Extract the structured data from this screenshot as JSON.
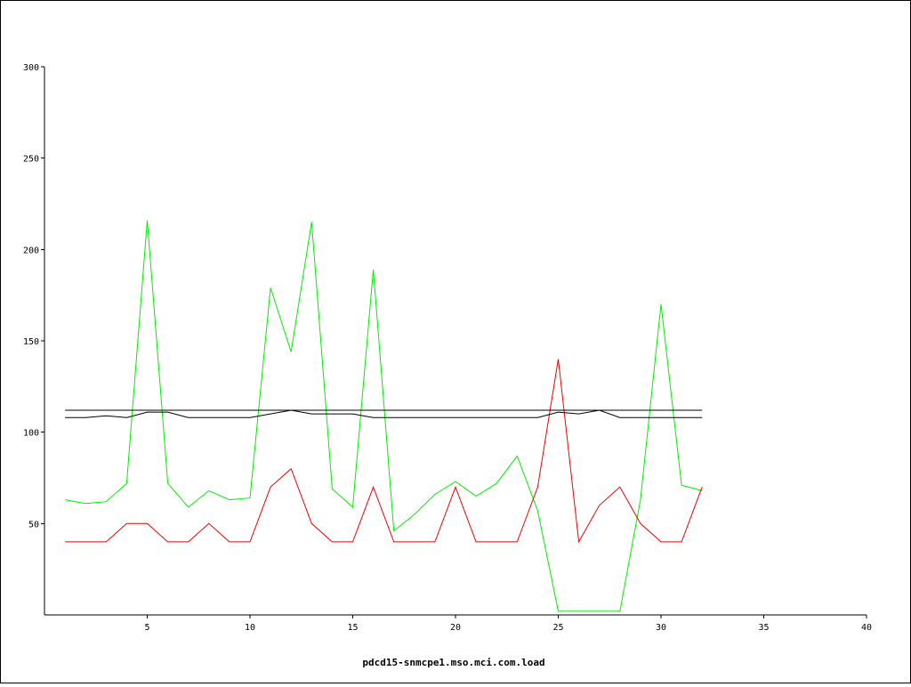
{
  "chart_data": {
    "type": "line",
    "title": "pdcd15-snmcpe1.mso.mci.com.load",
    "xlabel": "pdcd15-snmcpe1.mso.mci.com.load",
    "ylabel": "",
    "xlim": [
      0,
      40
    ],
    "ylim": [
      0,
      300
    ],
    "x_ticks": [
      5,
      10,
      15,
      20,
      25,
      30,
      35,
      40
    ],
    "y_ticks": [
      50,
      100,
      150,
      200,
      250,
      300
    ],
    "grid": false,
    "legend": "none",
    "x": [
      1,
      2,
      3,
      4,
      5,
      6,
      7,
      8,
      9,
      10,
      11,
      12,
      13,
      14,
      15,
      16,
      17,
      18,
      19,
      20,
      21,
      22,
      23,
      24,
      25,
      26,
      27,
      28,
      29,
      30,
      31,
      32
    ],
    "series": [
      {
        "color": "#00ee00",
        "values": [
          63,
          61,
          62,
          72,
          216,
          72,
          59,
          68,
          63,
          64,
          179,
          144,
          215,
          69,
          59,
          189,
          46,
          55,
          66,
          73,
          65,
          72,
          87,
          57,
          2,
          2,
          2,
          2,
          63,
          170,
          71,
          68
        ]
      },
      {
        "color": "#ee0000",
        "values": [
          40,
          40,
          40,
          50,
          50,
          40,
          40,
          50,
          40,
          40,
          70,
          80,
          50,
          40,
          40,
          70,
          40,
          40,
          40,
          70,
          40,
          40,
          40,
          70,
          140,
          40,
          60,
          70,
          50,
          40,
          40,
          70
        ]
      },
      {
        "color": "#000000",
        "values": [
          108,
          108,
          109,
          108,
          111,
          111,
          108,
          108,
          108,
          108,
          110,
          112,
          110,
          110,
          110,
          108,
          108,
          108,
          108,
          108,
          108,
          108,
          108,
          108,
          111,
          110,
          112,
          108,
          108,
          108,
          108,
          108
        ]
      },
      {
        "color": "#000000",
        "values": [
          112,
          112,
          112,
          112,
          112,
          112,
          112,
          112,
          112,
          112,
          112,
          112,
          112,
          112,
          112,
          112,
          112,
          112,
          112,
          112,
          112,
          112,
          112,
          112,
          112,
          112,
          112,
          112,
          112,
          112,
          112,
          112
        ]
      }
    ]
  }
}
